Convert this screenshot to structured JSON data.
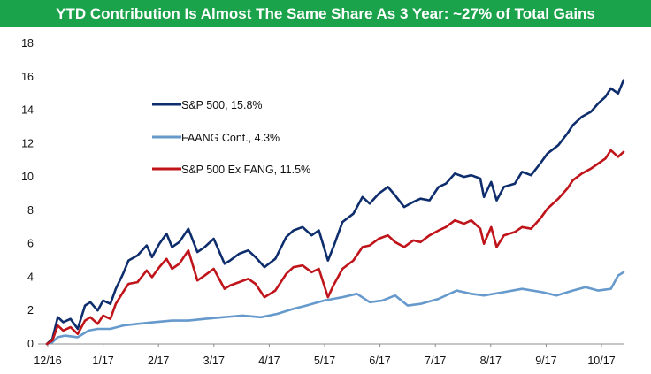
{
  "chart_data": {
    "type": "line",
    "title": "YTD Contribution Is Almost The Same Share As 3 Year: ~27% of Total Gains",
    "xlabel": "",
    "ylabel": "",
    "ylim": [
      0,
      18
    ],
    "yticks": [
      "0",
      "2",
      "4",
      "6",
      "8",
      "10",
      "12",
      "14",
      "16",
      "18"
    ],
    "x_tick_labels": [
      "12/16",
      "1/17",
      "2/17",
      "3/17",
      "4/17",
      "5/17",
      "6/17",
      "7/17",
      "8/17",
      "9/17",
      "10/17"
    ],
    "x_domain": [
      "2016-12-13",
      "2017-10-27"
    ],
    "grid": false,
    "legend_position": "upper-left",
    "series": [
      {
        "name": "S&P 500, 15.8%",
        "color": "#0d2d6c",
        "points": [
          [
            "2016-12-13",
            0
          ],
          [
            "2016-12-16",
            0.3
          ],
          [
            "2016-12-19",
            1.6
          ],
          [
            "2016-12-22",
            1.3
          ],
          [
            "2016-12-26",
            1.5
          ],
          [
            "2016-12-30",
            0.9
          ],
          [
            "2017-01-03",
            2.3
          ],
          [
            "2017-01-06",
            2.5
          ],
          [
            "2017-01-10",
            2.0
          ],
          [
            "2017-01-13",
            2.6
          ],
          [
            "2017-01-17",
            2.4
          ],
          [
            "2017-01-20",
            3.3
          ],
          [
            "2017-01-24",
            4.2
          ],
          [
            "2017-01-27",
            5.0
          ],
          [
            "2017-02-01",
            5.3
          ],
          [
            "2017-02-06",
            5.9
          ],
          [
            "2017-02-09",
            5.2
          ],
          [
            "2017-02-13",
            6.0
          ],
          [
            "2017-02-17",
            6.6
          ],
          [
            "2017-02-20",
            5.8
          ],
          [
            "2017-02-24",
            6.1
          ],
          [
            "2017-03-01",
            6.9
          ],
          [
            "2017-03-06",
            5.5
          ],
          [
            "2017-03-10",
            5.8
          ],
          [
            "2017-03-15",
            6.3
          ],
          [
            "2017-03-21",
            4.8
          ],
          [
            "2017-03-24",
            5.0
          ],
          [
            "2017-03-29",
            5.4
          ],
          [
            "2017-04-03",
            5.6
          ],
          [
            "2017-04-07",
            5.2
          ],
          [
            "2017-04-12",
            4.6
          ],
          [
            "2017-04-18",
            5.1
          ],
          [
            "2017-04-24",
            6.4
          ],
          [
            "2017-04-28",
            6.8
          ],
          [
            "2017-05-03",
            7.0
          ],
          [
            "2017-05-08",
            6.5
          ],
          [
            "2017-05-12",
            6.8
          ],
          [
            "2017-05-17",
            5.0
          ],
          [
            "2017-05-20",
            5.8
          ],
          [
            "2017-05-25",
            7.3
          ],
          [
            "2017-05-31",
            7.8
          ],
          [
            "2017-06-05",
            8.8
          ],
          [
            "2017-06-09",
            8.4
          ],
          [
            "2017-06-14",
            9.0
          ],
          [
            "2017-06-19",
            9.4
          ],
          [
            "2017-06-23",
            8.9
          ],
          [
            "2017-06-28",
            8.2
          ],
          [
            "2017-07-03",
            8.5
          ],
          [
            "2017-07-07",
            8.7
          ],
          [
            "2017-07-12",
            8.6
          ],
          [
            "2017-07-17",
            9.4
          ],
          [
            "2017-07-21",
            9.6
          ],
          [
            "2017-07-26",
            10.2
          ],
          [
            "2017-07-31",
            10.0
          ],
          [
            "2017-08-04",
            10.1
          ],
          [
            "2017-08-09",
            9.9
          ],
          [
            "2017-08-11",
            8.8
          ],
          [
            "2017-08-15",
            9.7
          ],
          [
            "2017-08-18",
            8.6
          ],
          [
            "2017-08-22",
            9.4
          ],
          [
            "2017-08-28",
            9.6
          ],
          [
            "2017-09-01",
            10.3
          ],
          [
            "2017-09-06",
            10.1
          ],
          [
            "2017-09-11",
            10.8
          ],
          [
            "2017-09-15",
            11.4
          ],
          [
            "2017-09-21",
            11.9
          ],
          [
            "2017-09-26",
            12.6
          ],
          [
            "2017-09-29",
            13.1
          ],
          [
            "2017-10-04",
            13.6
          ],
          [
            "2017-10-09",
            13.9
          ],
          [
            "2017-10-13",
            14.4
          ],
          [
            "2017-10-17",
            14.8
          ],
          [
            "2017-10-20",
            15.3
          ],
          [
            "2017-10-24",
            15.0
          ],
          [
            "2017-10-27",
            15.8
          ]
        ]
      },
      {
        "name": "FAANG Cont., 4.3%",
        "color": "#6699cc",
        "points": [
          [
            "2016-12-13",
            0
          ],
          [
            "2016-12-16",
            0.1
          ],
          [
            "2016-12-19",
            0.4
          ],
          [
            "2016-12-23",
            0.5
          ],
          [
            "2016-12-30",
            0.4
          ],
          [
            "2017-01-05",
            0.8
          ],
          [
            "2017-01-10",
            0.9
          ],
          [
            "2017-01-17",
            0.9
          ],
          [
            "2017-01-24",
            1.1
          ],
          [
            "2017-02-01",
            1.2
          ],
          [
            "2017-02-10",
            1.3
          ],
          [
            "2017-02-20",
            1.4
          ],
          [
            "2017-03-01",
            1.4
          ],
          [
            "2017-03-10",
            1.5
          ],
          [
            "2017-03-20",
            1.6
          ],
          [
            "2017-03-31",
            1.7
          ],
          [
            "2017-04-10",
            1.6
          ],
          [
            "2017-04-19",
            1.8
          ],
          [
            "2017-04-28",
            2.1
          ],
          [
            "2017-05-05",
            2.3
          ],
          [
            "2017-05-15",
            2.6
          ],
          [
            "2017-05-25",
            2.8
          ],
          [
            "2017-06-02",
            3.0
          ],
          [
            "2017-06-09",
            2.5
          ],
          [
            "2017-06-16",
            2.6
          ],
          [
            "2017-06-23",
            2.9
          ],
          [
            "2017-06-30",
            2.3
          ],
          [
            "2017-07-07",
            2.4
          ],
          [
            "2017-07-17",
            2.7
          ],
          [
            "2017-07-27",
            3.2
          ],
          [
            "2017-08-04",
            3.0
          ],
          [
            "2017-08-11",
            2.9
          ],
          [
            "2017-08-22",
            3.1
          ],
          [
            "2017-09-01",
            3.3
          ],
          [
            "2017-09-12",
            3.1
          ],
          [
            "2017-09-20",
            2.9
          ],
          [
            "2017-09-29",
            3.2
          ],
          [
            "2017-10-06",
            3.4
          ],
          [
            "2017-10-13",
            3.2
          ],
          [
            "2017-10-20",
            3.3
          ],
          [
            "2017-10-24",
            4.1
          ],
          [
            "2017-10-27",
            4.3
          ]
        ]
      },
      {
        "name": "S&P 500 Ex FANG, 11.5%",
        "color": "#c0141b",
        "points": [
          [
            "2016-12-13",
            0
          ],
          [
            "2016-12-16",
            0.2
          ],
          [
            "2016-12-19",
            1.1
          ],
          [
            "2016-12-22",
            0.8
          ],
          [
            "2016-12-26",
            1.0
          ],
          [
            "2016-12-30",
            0.6
          ],
          [
            "2017-01-03",
            1.4
          ],
          [
            "2017-01-06",
            1.6
          ],
          [
            "2017-01-10",
            1.2
          ],
          [
            "2017-01-13",
            1.7
          ],
          [
            "2017-01-17",
            1.5
          ],
          [
            "2017-01-20",
            2.4
          ],
          [
            "2017-01-24",
            3.1
          ],
          [
            "2017-01-27",
            3.6
          ],
          [
            "2017-02-01",
            3.7
          ],
          [
            "2017-02-06",
            4.4
          ],
          [
            "2017-02-09",
            4.0
          ],
          [
            "2017-02-13",
            4.6
          ],
          [
            "2017-02-17",
            5.1
          ],
          [
            "2017-02-20",
            4.5
          ],
          [
            "2017-02-24",
            4.8
          ],
          [
            "2017-03-01",
            5.6
          ],
          [
            "2017-03-06",
            3.8
          ],
          [
            "2017-03-10",
            4.1
          ],
          [
            "2017-03-15",
            4.5
          ],
          [
            "2017-03-21",
            3.3
          ],
          [
            "2017-03-24",
            3.5
          ],
          [
            "2017-03-29",
            3.7
          ],
          [
            "2017-04-03",
            3.9
          ],
          [
            "2017-04-07",
            3.6
          ],
          [
            "2017-04-12",
            2.8
          ],
          [
            "2017-04-18",
            3.2
          ],
          [
            "2017-04-24",
            4.2
          ],
          [
            "2017-04-28",
            4.6
          ],
          [
            "2017-05-03",
            4.7
          ],
          [
            "2017-05-08",
            4.3
          ],
          [
            "2017-05-12",
            4.5
          ],
          [
            "2017-05-17",
            2.8
          ],
          [
            "2017-05-20",
            3.5
          ],
          [
            "2017-05-25",
            4.5
          ],
          [
            "2017-05-31",
            5.0
          ],
          [
            "2017-06-05",
            5.8
          ],
          [
            "2017-06-09",
            5.9
          ],
          [
            "2017-06-14",
            6.3
          ],
          [
            "2017-06-19",
            6.5
          ],
          [
            "2017-06-23",
            6.1
          ],
          [
            "2017-06-28",
            5.8
          ],
          [
            "2017-07-03",
            6.2
          ],
          [
            "2017-07-07",
            6.1
          ],
          [
            "2017-07-12",
            6.5
          ],
          [
            "2017-07-17",
            6.8
          ],
          [
            "2017-07-21",
            7.0
          ],
          [
            "2017-07-26",
            7.4
          ],
          [
            "2017-07-31",
            7.2
          ],
          [
            "2017-08-04",
            7.4
          ],
          [
            "2017-08-09",
            6.9
          ],
          [
            "2017-08-11",
            6.0
          ],
          [
            "2017-08-15",
            7.0
          ],
          [
            "2017-08-18",
            5.8
          ],
          [
            "2017-08-22",
            6.5
          ],
          [
            "2017-08-28",
            6.7
          ],
          [
            "2017-09-01",
            7.0
          ],
          [
            "2017-09-06",
            6.9
          ],
          [
            "2017-09-11",
            7.5
          ],
          [
            "2017-09-15",
            8.1
          ],
          [
            "2017-09-21",
            8.7
          ],
          [
            "2017-09-26",
            9.3
          ],
          [
            "2017-09-29",
            9.8
          ],
          [
            "2017-10-04",
            10.2
          ],
          [
            "2017-10-09",
            10.5
          ],
          [
            "2017-10-13",
            10.8
          ],
          [
            "2017-10-17",
            11.1
          ],
          [
            "2017-10-20",
            11.6
          ],
          [
            "2017-10-24",
            11.2
          ],
          [
            "2017-10-27",
            11.5
          ]
        ]
      }
    ]
  }
}
